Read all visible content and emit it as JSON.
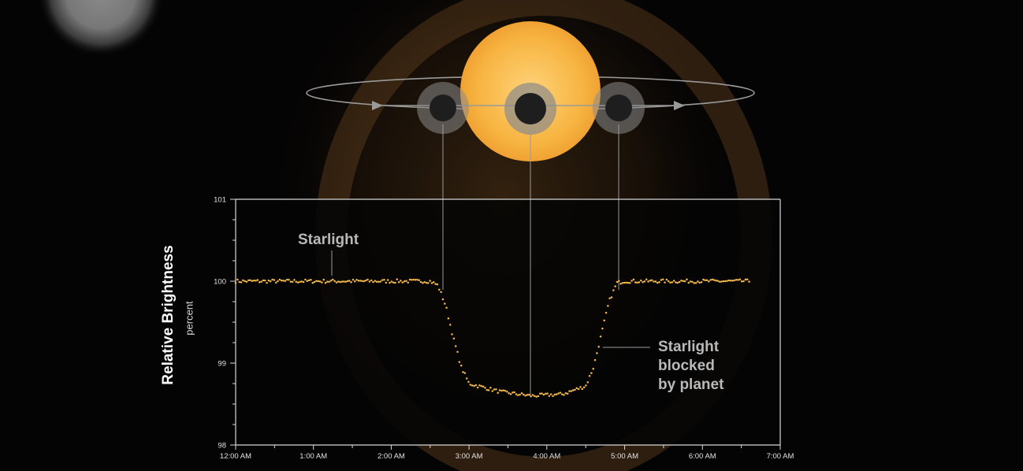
{
  "chart_data": {
    "type": "scatter",
    "ylabel": "Relative Brightness",
    "ylabel_unit": "percent",
    "ylim": [
      98,
      101
    ],
    "y_ticks": [
      98,
      99,
      100,
      101
    ],
    "xlim": [
      "12:00 AM",
      "7:00 AM"
    ],
    "x_ticks": [
      "12:00 AM",
      "1:00 AM",
      "2:00 AM",
      "3:00 AM",
      "4:00 AM",
      "5:00 AM",
      "6:00 AM",
      "7:00 AM"
    ],
    "point_color": "#f2b94a",
    "transit": {
      "baseline": 100.0,
      "depth_minimum": 98.6,
      "ingress_start": "2:36 AM",
      "full_depth_start": "3:00 AM",
      "full_depth_end": "4:30 AM",
      "egress_end": "4:54 AM",
      "mid_transit": "3:48 AM"
    },
    "points": [
      {
        "x": "12:00 AM",
        "y": 100.0
      },
      {
        "x": "2:30 AM",
        "y": 100.0
      },
      {
        "x": "2:36 AM",
        "y": 99.95
      },
      {
        "x": "2:42 AM",
        "y": 99.7
      },
      {
        "x": "2:48 AM",
        "y": 99.3
      },
      {
        "x": "2:54 AM",
        "y": 98.95
      },
      {
        "x": "3:00 AM",
        "y": 98.75
      },
      {
        "x": "3:24 AM",
        "y": 98.65
      },
      {
        "x": "3:48 AM",
        "y": 98.6
      },
      {
        "x": "4:12 AM",
        "y": 98.62
      },
      {
        "x": "4:30 AM",
        "y": 98.72
      },
      {
        "x": "4:36 AM",
        "y": 98.95
      },
      {
        "x": "4:42 AM",
        "y": 99.35
      },
      {
        "x": "4:48 AM",
        "y": 99.75
      },
      {
        "x": "4:54 AM",
        "y": 99.98
      },
      {
        "x": "5:00 AM",
        "y": 100.0
      },
      {
        "x": "6:36 AM",
        "y": 100.0
      }
    ],
    "annotations": {
      "starlight": "Starlight",
      "blocked": [
        "Starlight",
        "blocked",
        "by planet"
      ]
    }
  },
  "scene": {
    "star_color": "#f5b03c",
    "planet_color": "#1e1e1e"
  }
}
